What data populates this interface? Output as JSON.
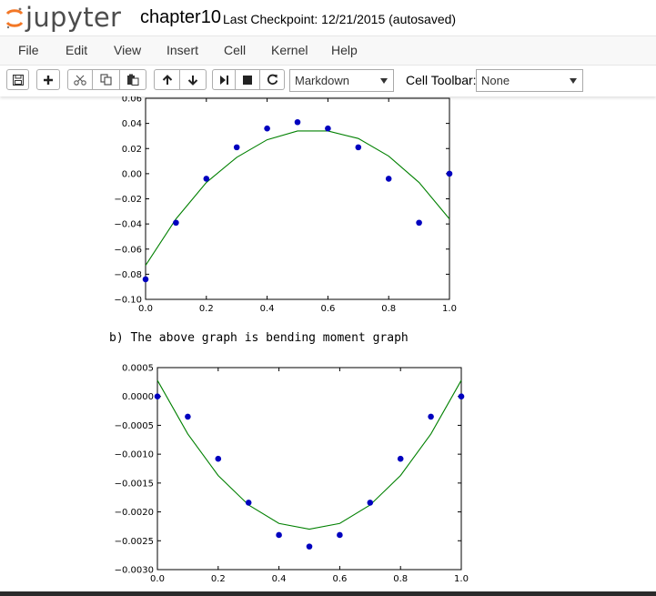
{
  "app": {
    "logo_text": "jupyter",
    "notebook_name": "chapter10",
    "checkpoint": "Last Checkpoint: 12/21/2015 (autosaved)"
  },
  "menu": {
    "items": [
      {
        "label": "File"
      },
      {
        "label": "Edit"
      },
      {
        "label": "View"
      },
      {
        "label": "Insert"
      },
      {
        "label": "Cell"
      },
      {
        "label": "Kernel"
      },
      {
        "label": "Help"
      }
    ]
  },
  "toolbar": {
    "buttons": [
      {
        "icon": "save-icon"
      },
      {
        "icon": "plus-icon"
      },
      {
        "icon": "cut-icon"
      },
      {
        "icon": "copy-icon"
      },
      {
        "icon": "paste-icon"
      },
      {
        "icon": "arrow-up-icon"
      },
      {
        "icon": "arrow-down-icon"
      },
      {
        "icon": "run-icon"
      },
      {
        "icon": "stop-icon"
      },
      {
        "icon": "restart-icon"
      }
    ],
    "cell_type": "Markdown",
    "cell_toolbar_label": "Cell Toolbar:",
    "cell_toolbar_value": "None"
  },
  "markdown_cell": {
    "text": "b) The above graph is bending moment graph"
  },
  "colors": {
    "points": "#0000bf",
    "line": "#008000"
  },
  "chart_data": [
    {
      "type": "scatter",
      "title": "",
      "xlabel": "",
      "ylabel": "",
      "xlim": [
        0.0,
        1.0
      ],
      "ylim": [
        -0.1,
        0.06
      ],
      "xticks": [
        "0.0",
        "0.2",
        "0.4",
        "0.6",
        "0.8",
        "1.0"
      ],
      "yticks": [
        "0.06",
        "0.04",
        "0.02",
        "0.00",
        "−0.02",
        "−0.04",
        "−0.06",
        "−0.08",
        "−0.10"
      ],
      "ytick_values": [
        0.06,
        0.04,
        0.02,
        0.0,
        -0.02,
        -0.04,
        -0.06,
        -0.08,
        -0.1
      ],
      "xtick_values": [
        0.0,
        0.2,
        0.4,
        0.6,
        0.8,
        1.0
      ],
      "series": [
        {
          "kind": "points",
          "x": [
            0.0,
            0.1,
            0.2,
            0.3,
            0.4,
            0.5,
            0.6,
            0.7,
            0.8,
            0.9,
            1.0
          ],
          "y": [
            -0.084,
            -0.039,
            -0.004,
            0.021,
            0.036,
            0.041,
            0.036,
            0.021,
            -0.004,
            -0.039,
            0.0
          ]
        },
        {
          "kind": "line",
          "x": [
            0.0,
            0.1,
            0.2,
            0.3,
            0.4,
            0.5,
            0.6,
            0.7,
            0.8,
            0.9,
            1.0
          ],
          "y": [
            -0.073,
            -0.036,
            -0.007,
            0.013,
            0.027,
            0.034,
            0.034,
            0.028,
            0.014,
            -0.007,
            -0.036
          ]
        }
      ]
    },
    {
      "type": "scatter",
      "title": "",
      "xlabel": "",
      "ylabel": "",
      "xlim": [
        0.0,
        1.0
      ],
      "ylim": [
        -0.003,
        0.0005
      ],
      "xticks": [
        "0.0",
        "0.2",
        "0.4",
        "0.6",
        "0.8",
        "1.0"
      ],
      "yticks": [
        "0.0005",
        "0.0000",
        "−0.0005",
        "−0.0010",
        "−0.0015",
        "−0.0020",
        "−0.0025",
        "−0.0030"
      ],
      "ytick_values": [
        0.0005,
        0.0,
        -0.0005,
        -0.001,
        -0.0015,
        -0.002,
        -0.0025,
        -0.003
      ],
      "xtick_values": [
        0.0,
        0.2,
        0.4,
        0.6,
        0.8,
        1.0
      ],
      "series": [
        {
          "kind": "points",
          "x": [
            0.0,
            0.1,
            0.2,
            0.3,
            0.4,
            0.5,
            0.6,
            0.7,
            0.8,
            0.9,
            1.0
          ],
          "y": [
            0.0,
            -0.00035,
            -0.00108,
            -0.00184,
            -0.0024,
            -0.0026,
            -0.0024,
            -0.00184,
            -0.00108,
            -0.00035,
            0.0
          ]
        },
        {
          "kind": "line",
          "x": [
            0.0,
            0.1,
            0.2,
            0.3,
            0.4,
            0.5,
            0.6,
            0.7,
            0.8,
            0.9,
            1.0
          ],
          "y": [
            0.00028,
            -0.00065,
            -0.00137,
            -0.00188,
            -0.0022,
            -0.0023,
            -0.0022,
            -0.00188,
            -0.00137,
            -0.00065,
            0.00028
          ]
        }
      ]
    }
  ]
}
